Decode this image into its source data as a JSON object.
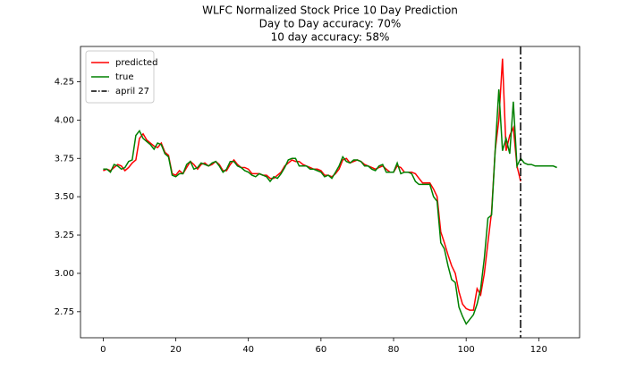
{
  "chart_data": {
    "type": "line",
    "title": [
      "WLFC Normalized Stock Price 10 Day Prediction",
      "Day to Day accuracy: 70%",
      "10 day accuracy: 58%"
    ],
    "series": [
      {
        "name": "predicted",
        "color": "#ff0000",
        "x": [
          0,
          1,
          2,
          3,
          4,
          5,
          6,
          7,
          8,
          9,
          10,
          11,
          12,
          13,
          14,
          15,
          16,
          17,
          18,
          19,
          20,
          21,
          22,
          23,
          24,
          25,
          26,
          27,
          28,
          29,
          30,
          31,
          32,
          33,
          34,
          35,
          36,
          37,
          38,
          39,
          40,
          41,
          42,
          43,
          44,
          45,
          46,
          47,
          48,
          49,
          50,
          51,
          52,
          53,
          54,
          55,
          56,
          57,
          58,
          59,
          60,
          61,
          62,
          63,
          64,
          65,
          66,
          67,
          68,
          69,
          70,
          71,
          72,
          73,
          74,
          75,
          76,
          77,
          78,
          79,
          80,
          81,
          82,
          83,
          84,
          85,
          86,
          87,
          88,
          89,
          90,
          91,
          92,
          93,
          94,
          95,
          96,
          97,
          98,
          99,
          100,
          101,
          102,
          103,
          104,
          105,
          106,
          107,
          108,
          109,
          110,
          111,
          112,
          113,
          114,
          115
        ],
        "values": [
          3.67,
          3.68,
          3.67,
          3.69,
          3.71,
          3.7,
          3.67,
          3.69,
          3.72,
          3.74,
          3.88,
          3.91,
          3.87,
          3.85,
          3.83,
          3.82,
          3.85,
          3.79,
          3.77,
          3.65,
          3.64,
          3.67,
          3.65,
          3.69,
          3.73,
          3.71,
          3.68,
          3.71,
          3.72,
          3.7,
          3.71,
          3.73,
          3.71,
          3.67,
          3.67,
          3.71,
          3.74,
          3.71,
          3.69,
          3.69,
          3.68,
          3.65,
          3.65,
          3.65,
          3.64,
          3.64,
          3.62,
          3.62,
          3.64,
          3.66,
          3.7,
          3.72,
          3.74,
          3.73,
          3.73,
          3.71,
          3.7,
          3.69,
          3.68,
          3.68,
          3.67,
          3.64,
          3.64,
          3.63,
          3.65,
          3.68,
          3.74,
          3.75,
          3.72,
          3.73,
          3.74,
          3.73,
          3.71,
          3.7,
          3.69,
          3.68,
          3.69,
          3.7,
          3.68,
          3.66,
          3.66,
          3.7,
          3.69,
          3.66,
          3.66,
          3.66,
          3.65,
          3.62,
          3.59,
          3.59,
          3.59,
          3.55,
          3.5,
          3.27,
          3.2,
          3.12,
          3.05,
          3.0,
          2.88,
          2.8,
          2.77,
          2.76,
          2.76,
          2.9,
          2.86,
          3.0,
          3.2,
          3.4,
          3.8,
          4.0,
          4.4,
          3.8,
          3.9,
          3.95,
          3.7,
          3.6
        ]
      },
      {
        "name": "true",
        "color": "#008000",
        "x": [
          0,
          1,
          2,
          3,
          4,
          5,
          6,
          7,
          8,
          9,
          10,
          11,
          12,
          13,
          14,
          15,
          16,
          17,
          18,
          19,
          20,
          21,
          22,
          23,
          24,
          25,
          26,
          27,
          28,
          29,
          30,
          31,
          32,
          33,
          34,
          35,
          36,
          37,
          38,
          39,
          40,
          41,
          42,
          43,
          44,
          45,
          46,
          47,
          48,
          49,
          50,
          51,
          52,
          53,
          54,
          55,
          56,
          57,
          58,
          59,
          60,
          61,
          62,
          63,
          64,
          65,
          66,
          67,
          68,
          69,
          70,
          71,
          72,
          73,
          74,
          75,
          76,
          77,
          78,
          79,
          80,
          81,
          82,
          83,
          84,
          85,
          86,
          87,
          88,
          89,
          90,
          91,
          92,
          93,
          94,
          95,
          96,
          97,
          98,
          99,
          100,
          101,
          102,
          103,
          104,
          105,
          106,
          107,
          108,
          109,
          110,
          111,
          112,
          113,
          114,
          115,
          116,
          117,
          118,
          119,
          120,
          121,
          122,
          123,
          124,
          125
        ],
        "values": [
          3.68,
          3.68,
          3.66,
          3.71,
          3.7,
          3.68,
          3.69,
          3.73,
          3.74,
          3.9,
          3.93,
          3.88,
          3.86,
          3.84,
          3.81,
          3.85,
          3.84,
          3.78,
          3.76,
          3.64,
          3.63,
          3.65,
          3.65,
          3.71,
          3.73,
          3.68,
          3.69,
          3.72,
          3.71,
          3.7,
          3.72,
          3.73,
          3.7,
          3.66,
          3.68,
          3.73,
          3.73,
          3.7,
          3.69,
          3.67,
          3.66,
          3.64,
          3.63,
          3.65,
          3.64,
          3.63,
          3.6,
          3.63,
          3.62,
          3.65,
          3.69,
          3.74,
          3.75,
          3.75,
          3.7,
          3.7,
          3.7,
          3.68,
          3.68,
          3.67,
          3.66,
          3.63,
          3.64,
          3.62,
          3.66,
          3.7,
          3.76,
          3.73,
          3.72,
          3.74,
          3.74,
          3.73,
          3.7,
          3.7,
          3.68,
          3.67,
          3.7,
          3.71,
          3.66,
          3.66,
          3.66,
          3.72,
          3.65,
          3.66,
          3.66,
          3.65,
          3.6,
          3.58,
          3.58,
          3.58,
          3.58,
          3.5,
          3.47,
          3.2,
          3.16,
          3.05,
          2.96,
          2.94,
          2.78,
          2.72,
          2.67,
          2.7,
          2.73,
          2.8,
          2.9,
          3.1,
          3.36,
          3.38,
          3.8,
          4.2,
          3.8,
          3.88,
          3.78,
          4.12,
          3.7,
          3.75,
          3.72,
          3.71,
          3.71,
          3.7,
          3.7,
          3.7,
          3.7,
          3.7,
          3.7,
          3.69
        ]
      }
    ],
    "vlines": [
      {
        "name": "april 27",
        "x": 115,
        "color": "#000000"
      }
    ],
    "xlim": [
      -6.25,
      131.25
    ],
    "xticks": [
      0,
      20,
      40,
      60,
      80,
      100,
      120
    ],
    "ylim": [
      2.58,
      4.48
    ],
    "yticks": [
      2.75,
      {
        "value": 3,
        "label": "3.00"
      },
      3.25,
      {
        "value": 3.5,
        "label": "3.50"
      },
      3.75,
      {
        "value": 4,
        "label": "4.00"
      },
      4.25
    ],
    "legend": "upper left",
    "grid": false
  }
}
